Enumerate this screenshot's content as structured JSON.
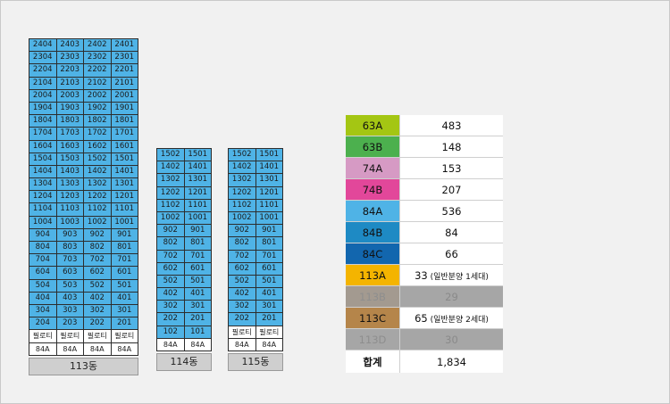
{
  "buildings": [
    {
      "name": "113동",
      "floors": [
        [
          "2404",
          "2403",
          "2402",
          "2401"
        ],
        [
          "2304",
          "2303",
          "2302",
          "2301"
        ],
        [
          "2204",
          "2203",
          "2202",
          "2201"
        ],
        [
          "2104",
          "2103",
          "2102",
          "2101"
        ],
        [
          "2004",
          "2003",
          "2002",
          "2001"
        ],
        [
          "1904",
          "1903",
          "1902",
          "1901"
        ],
        [
          "1804",
          "1803",
          "1802",
          "1801"
        ],
        [
          "1704",
          "1703",
          "1702",
          "1701"
        ],
        [
          "1604",
          "1603",
          "1602",
          "1601"
        ],
        [
          "1504",
          "1503",
          "1502",
          "1501"
        ],
        [
          "1404",
          "1403",
          "1402",
          "1401"
        ],
        [
          "1304",
          "1303",
          "1302",
          "1301"
        ],
        [
          "1204",
          "1203",
          "1202",
          "1201"
        ],
        [
          "1104",
          "1103",
          "1102",
          "1101"
        ],
        [
          "1004",
          "1003",
          "1002",
          "1001"
        ],
        [
          "904",
          "903",
          "902",
          "901"
        ],
        [
          "804",
          "803",
          "802",
          "801"
        ],
        [
          "704",
          "703",
          "702",
          "701"
        ],
        [
          "604",
          "603",
          "602",
          "601"
        ],
        [
          "504",
          "503",
          "502",
          "501"
        ],
        [
          "404",
          "403",
          "402",
          "401"
        ],
        [
          "304",
          "303",
          "302",
          "301"
        ],
        [
          "204",
          "203",
          "202",
          "201"
        ],
        [
          "필로티",
          "필로티",
          "필로티",
          "필로티"
        ]
      ],
      "types": [
        "84A",
        "84A",
        "84A",
        "84A"
      ]
    },
    {
      "name": "114동",
      "floors": [
        [
          "1502",
          "1501"
        ],
        [
          "1402",
          "1401"
        ],
        [
          "1302",
          "1301"
        ],
        [
          "1202",
          "1201"
        ],
        [
          "1102",
          "1101"
        ],
        [
          "1002",
          "1001"
        ],
        [
          "902",
          "901"
        ],
        [
          "802",
          "801"
        ],
        [
          "702",
          "701"
        ],
        [
          "602",
          "601"
        ],
        [
          "502",
          "501"
        ],
        [
          "402",
          "401"
        ],
        [
          "302",
          "301"
        ],
        [
          "202",
          "201"
        ],
        [
          "102",
          "101"
        ]
      ],
      "types": [
        "84A",
        "84A"
      ]
    },
    {
      "name": "115동",
      "floors": [
        [
          "1502",
          "1501"
        ],
        [
          "1402",
          "1401"
        ],
        [
          "1302",
          "1301"
        ],
        [
          "1202",
          "1201"
        ],
        [
          "1102",
          "1101"
        ],
        [
          "1002",
          "1001"
        ],
        [
          "902",
          "901"
        ],
        [
          "802",
          "801"
        ],
        [
          "702",
          "701"
        ],
        [
          "602",
          "601"
        ],
        [
          "502",
          "501"
        ],
        [
          "402",
          "401"
        ],
        [
          "302",
          "301"
        ],
        [
          "202",
          "201"
        ],
        [
          "필로티",
          "필로티"
        ]
      ],
      "types": [
        "84A",
        "84A"
      ]
    }
  ],
  "legend": [
    {
      "type": "63A",
      "count": "483",
      "note": "",
      "color": "#a4c613",
      "dim": false
    },
    {
      "type": "63B",
      "count": "148",
      "note": "",
      "color": "#4cb04e",
      "dim": false
    },
    {
      "type": "74A",
      "count": "153",
      "note": "",
      "color": "#d69ac4",
      "dim": false
    },
    {
      "type": "74B",
      "count": "207",
      "note": "",
      "color": "#e2479a",
      "dim": false
    },
    {
      "type": "84A",
      "count": "536",
      "note": "",
      "color": "#4fb3e6",
      "dim": false
    },
    {
      "type": "84B",
      "count": "84",
      "note": "",
      "color": "#1e8ac4",
      "dim": false
    },
    {
      "type": "84C",
      "count": "66",
      "note": "",
      "color": "#1266ae",
      "dim": false
    },
    {
      "type": "113A",
      "count": "33",
      "note": "(일반분양 1세대)",
      "color": "#f4b400",
      "dim": false
    },
    {
      "type": "113B",
      "count": "29",
      "note": "",
      "color": "#a39a90",
      "dim": true
    },
    {
      "type": "113C",
      "count": "65",
      "note": "(일반분양 2세대)",
      "color": "#b5854a",
      "dim": false
    },
    {
      "type": "113D",
      "count": "30",
      "note": "",
      "color": "#a6a6a6",
      "dim": true
    }
  ],
  "total": {
    "label": "합계",
    "value": "1,834"
  }
}
